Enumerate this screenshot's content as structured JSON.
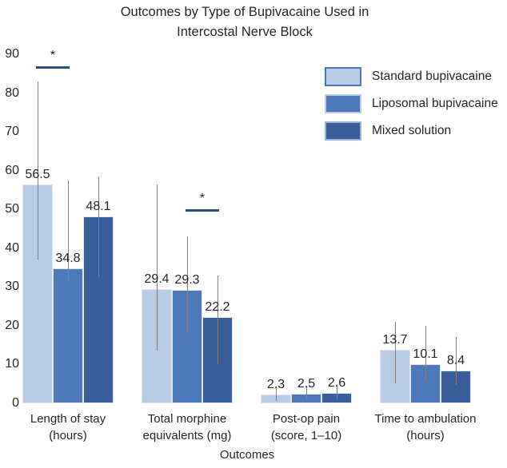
{
  "title": {
    "line1": "Outcomes by Type of Bupivacaine Used in",
    "line2": "Intercostal Nerve Block"
  },
  "colors": {
    "standard": "#b9cbe5",
    "liposomal": "#4d79ba",
    "mixed": "#3a5e99",
    "error_bar": "#7f7f7f",
    "sig_line": "#2c4d87",
    "text": "#262626"
  },
  "chart_data": {
    "type": "bar",
    "title": "Outcomes by Type of Bupivacaine Used in Intercostal Nerve Block",
    "xlabel": "Outcomes",
    "ylabel": "",
    "ylim": [
      0,
      90
    ],
    "yticks": [
      0,
      10,
      20,
      30,
      40,
      50,
      60,
      70,
      80,
      90
    ],
    "grid": false,
    "legend_position": "top-right",
    "categories": [
      "Length of stay (hours)",
      "Total morphine equivalents (mg)",
      "Post-op pain (score, 1–10)",
      "Time to ambulation (hours)"
    ],
    "category_label_lines": [
      [
        "Length of stay",
        "(hours)"
      ],
      [
        "Total morphine",
        "equivalents (mg)"
      ],
      [
        "Post-op pain",
        "(score, 1–10)"
      ],
      [
        "Time to ambulation",
        "(hours)"
      ]
    ],
    "series": [
      {
        "name": "Standard bupivacaine",
        "color": "#b9cbe5",
        "swatch_border": "#4d79ba",
        "values": [
          56.5,
          29.4,
          2.3,
          13.7
        ],
        "error_low": [
          37.0,
          13.5,
          0.7,
          5.2
        ],
        "error_high": [
          83.0,
          56.5,
          4.4,
          21.0
        ]
      },
      {
        "name": "Liposomal bupivacaine",
        "color": "#4d79ba",
        "swatch_border": "#b9cbe5",
        "values": [
          34.8,
          29.3,
          2.5,
          10.1
        ],
        "error_low": [
          31.5,
          18.0,
          0.8,
          5.8
        ],
        "error_high": [
          57.5,
          43.0,
          4.6,
          20.0
        ]
      },
      {
        "name": "Mixed solution",
        "color": "#3a5e99",
        "swatch_border": "#9db4d6",
        "values": [
          48.1,
          22.2,
          2.6,
          8.4
        ],
        "error_low": [
          32.5,
          10.0,
          1.0,
          4.8
        ],
        "error_high": [
          58.5,
          33.0,
          5.0,
          17.0
        ]
      }
    ],
    "significance_markers": [
      {
        "category_index": 0,
        "series_from": 0,
        "series_to": 1,
        "symbol": "*",
        "height_value": 87
      },
      {
        "category_index": 1,
        "series_from": 1,
        "series_to": 2,
        "symbol": "*",
        "height_value": 50
      }
    ]
  }
}
